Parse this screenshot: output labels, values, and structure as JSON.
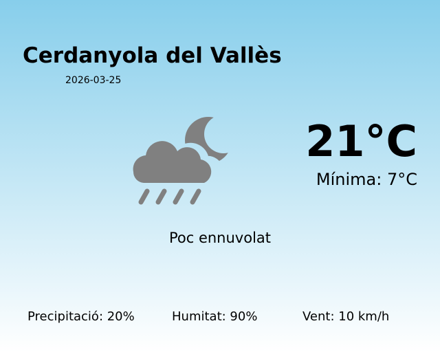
{
  "city": "Cerdanyola del Vallès",
  "date": "2026-03-25",
  "temperature": "21°C",
  "minimum": "Mínima: 7°C",
  "condition": "Poc ennuvolat",
  "condition_icon": "cloud-rain-moon-icon",
  "icon_color": "#808080",
  "stats": {
    "precipitation": "Precipitació: 20%",
    "humidity": "Humitat: 90%",
    "wind": "Vent: 10 km/h"
  }
}
